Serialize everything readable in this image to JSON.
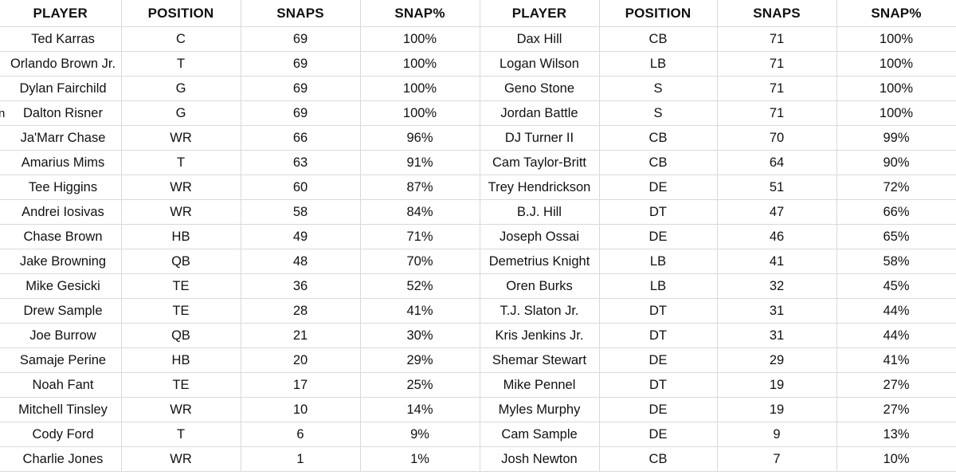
{
  "headers": {
    "player": "PLAYER",
    "position": "POSITION",
    "snaps": "SNAPS",
    "snap_pct": "SNAP%"
  },
  "offense": [
    {
      "player": "Ted Karras",
      "position": "C",
      "snaps": "69",
      "snap_pct": "100%"
    },
    {
      "player": "Orlando Brown Jr.",
      "position": "T",
      "snaps": "69",
      "snap_pct": "100%"
    },
    {
      "player": "Dylan Fairchild",
      "position": "G",
      "snaps": "69",
      "snap_pct": "100%"
    },
    {
      "player": "Dalton Risner",
      "position": "G",
      "snaps": "69",
      "snap_pct": "100%"
    },
    {
      "player": "Ja'Marr Chase",
      "position": "WR",
      "snaps": "66",
      "snap_pct": "96%"
    },
    {
      "player": "Amarius Mims",
      "position": "T",
      "snaps": "63",
      "snap_pct": "91%"
    },
    {
      "player": "Tee Higgins",
      "position": "WR",
      "snaps": "60",
      "snap_pct": "87%"
    },
    {
      "player": "Andrei Iosivas",
      "position": "WR",
      "snaps": "58",
      "snap_pct": "84%"
    },
    {
      "player": "Chase Brown",
      "position": "HB",
      "snaps": "49",
      "snap_pct": "71%"
    },
    {
      "player": "Jake Browning",
      "position": "QB",
      "snaps": "48",
      "snap_pct": "70%"
    },
    {
      "player": "Mike Gesicki",
      "position": "TE",
      "snaps": "36",
      "snap_pct": "52%"
    },
    {
      "player": "Drew Sample",
      "position": "TE",
      "snaps": "28",
      "snap_pct": "41%"
    },
    {
      "player": "Joe Burrow",
      "position": "QB",
      "snaps": "21",
      "snap_pct": "30%"
    },
    {
      "player": "Samaje Perine",
      "position": "HB",
      "snaps": "20",
      "snap_pct": "29%"
    },
    {
      "player": "Noah Fant",
      "position": "TE",
      "snaps": "17",
      "snap_pct": "25%"
    },
    {
      "player": "Mitchell Tinsley",
      "position": "WR",
      "snaps": "10",
      "snap_pct": "14%"
    },
    {
      "player": "Cody Ford",
      "position": "T",
      "snaps": "6",
      "snap_pct": "9%"
    },
    {
      "player": "Charlie Jones",
      "position": "WR",
      "snaps": "1",
      "snap_pct": "1%"
    }
  ],
  "defense": [
    {
      "player": "Dax Hill",
      "position": "CB",
      "snaps": "71",
      "snap_pct": "100%"
    },
    {
      "player": "Logan Wilson",
      "position": "LB",
      "snaps": "71",
      "snap_pct": "100%"
    },
    {
      "player": "Geno Stone",
      "position": "S",
      "snaps": "71",
      "snap_pct": "100%"
    },
    {
      "player": "Jordan Battle",
      "position": "S",
      "snaps": "71",
      "snap_pct": "100%"
    },
    {
      "player": "DJ Turner II",
      "position": "CB",
      "snaps": "70",
      "snap_pct": "99%"
    },
    {
      "player": "Cam Taylor-Britt",
      "position": "CB",
      "snaps": "64",
      "snap_pct": "90%"
    },
    {
      "player": "Trey Hendrickson",
      "position": "DE",
      "snaps": "51",
      "snap_pct": "72%"
    },
    {
      "player": "B.J. Hill",
      "position": "DT",
      "snaps": "47",
      "snap_pct": "66%"
    },
    {
      "player": "Joseph Ossai",
      "position": "DE",
      "snaps": "46",
      "snap_pct": "65%"
    },
    {
      "player": "Demetrius Knight",
      "position": "LB",
      "snaps": "41",
      "snap_pct": "58%"
    },
    {
      "player": "Oren Burks",
      "position": "LB",
      "snaps": "32",
      "snap_pct": "45%"
    },
    {
      "player": "T.J. Slaton Jr.",
      "position": "DT",
      "snaps": "31",
      "snap_pct": "44%"
    },
    {
      "player": "Kris Jenkins Jr.",
      "position": "DT",
      "snaps": "31",
      "snap_pct": "44%"
    },
    {
      "player": "Shemar Stewart",
      "position": "DE",
      "snaps": "29",
      "snap_pct": "41%"
    },
    {
      "player": "Mike Pennel",
      "position": "DT",
      "snaps": "19",
      "snap_pct": "27%"
    },
    {
      "player": "Myles Murphy",
      "position": "DE",
      "snaps": "19",
      "snap_pct": "27%"
    },
    {
      "player": "Cam Sample",
      "position": "DE",
      "snaps": "9",
      "snap_pct": "13%"
    },
    {
      "player": "Josh Newton",
      "position": "CB",
      "snaps": "7",
      "snap_pct": "10%"
    }
  ],
  "edge_mark": "n"
}
